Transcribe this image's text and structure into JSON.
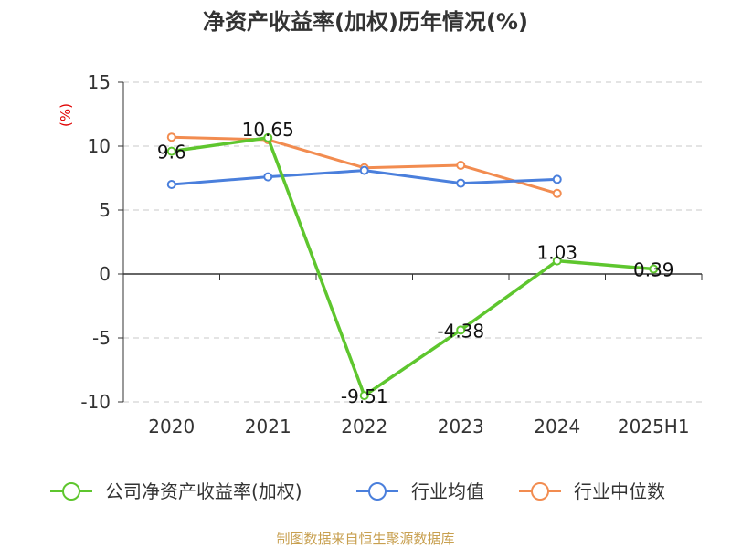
{
  "chart_data": {
    "type": "line",
    "title": "净资产收益率(加权)历年情况(%)",
    "unit_label": "(%)",
    "categories": [
      "2020",
      "2021",
      "2022",
      "2023",
      "2024",
      "2025H1"
    ],
    "ylim": [
      -10,
      15
    ],
    "yticks": [
      15,
      10,
      5,
      0,
      -5,
      -10
    ],
    "grid": true,
    "legend_position": "bottom",
    "series": [
      {
        "name": "公司净资产收益率(加权)",
        "color": "#5ec62e",
        "values": [
          9.6,
          10.65,
          -9.51,
          -4.38,
          1.03,
          0.39
        ],
        "labels": [
          "9.6",
          "10.65",
          "-9.51",
          "-4.38",
          "1.03",
          "0.39"
        ]
      },
      {
        "name": "行业均值",
        "color": "#4a7fdc",
        "values": [
          7.0,
          7.6,
          8.1,
          7.1,
          7.4,
          null
        ]
      },
      {
        "name": "行业中位数",
        "color": "#f28c50",
        "values": [
          10.7,
          10.5,
          8.3,
          8.5,
          6.3,
          null
        ]
      }
    ],
    "source": "制图数据来自恒生聚源数据库"
  }
}
